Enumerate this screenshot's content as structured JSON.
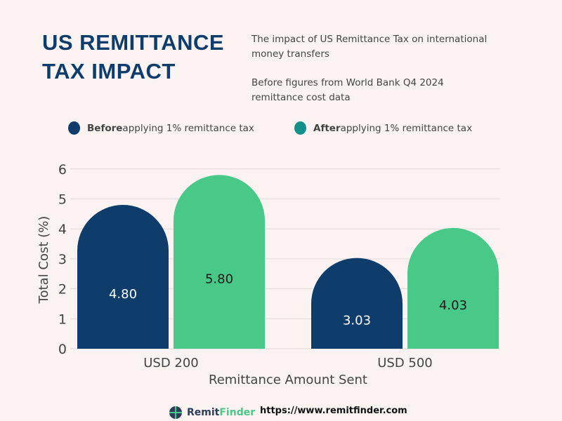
{
  "header": {
    "title_line1": "US REMITTANCE",
    "title_line2": "TAX IMPACT",
    "subtitle1": "The impact of US Remittance Tax on international money transfers",
    "subtitle2": "Before figures from World Bank Q4 2024 remittance cost data"
  },
  "legend": [
    {
      "bold": "Before",
      "text": " applying 1% remittance tax",
      "color": "#0e3d6b"
    },
    {
      "bold": "After",
      "text": " applying 1% remittance tax",
      "color": "#11918a"
    }
  ],
  "footer": {
    "brand_a": "Remit",
    "brand_b": "Finder",
    "url": "https://www.remitfinder.com"
  },
  "chart_data": {
    "type": "bar",
    "title": "",
    "xlabel": "Remittance Amount Sent",
    "ylabel": "Total Cost (%)",
    "categories": [
      "USD 200",
      "USD 500"
    ],
    "ylim": [
      0,
      6
    ],
    "yticks": [
      "0",
      "1",
      "2",
      "3",
      "4",
      "5",
      "6"
    ],
    "grid": true,
    "series": [
      {
        "name": "Before applying 1% remittance tax",
        "color": "#0e3d6b",
        "values": [
          4.8,
          3.03
        ],
        "labels": [
          "4.80",
          "3.03"
        ]
      },
      {
        "name": "After applying 1% remittance tax",
        "color": "#48c987",
        "values": [
          5.8,
          4.03
        ],
        "labels": [
          "5.80",
          "4.03"
        ]
      }
    ]
  }
}
